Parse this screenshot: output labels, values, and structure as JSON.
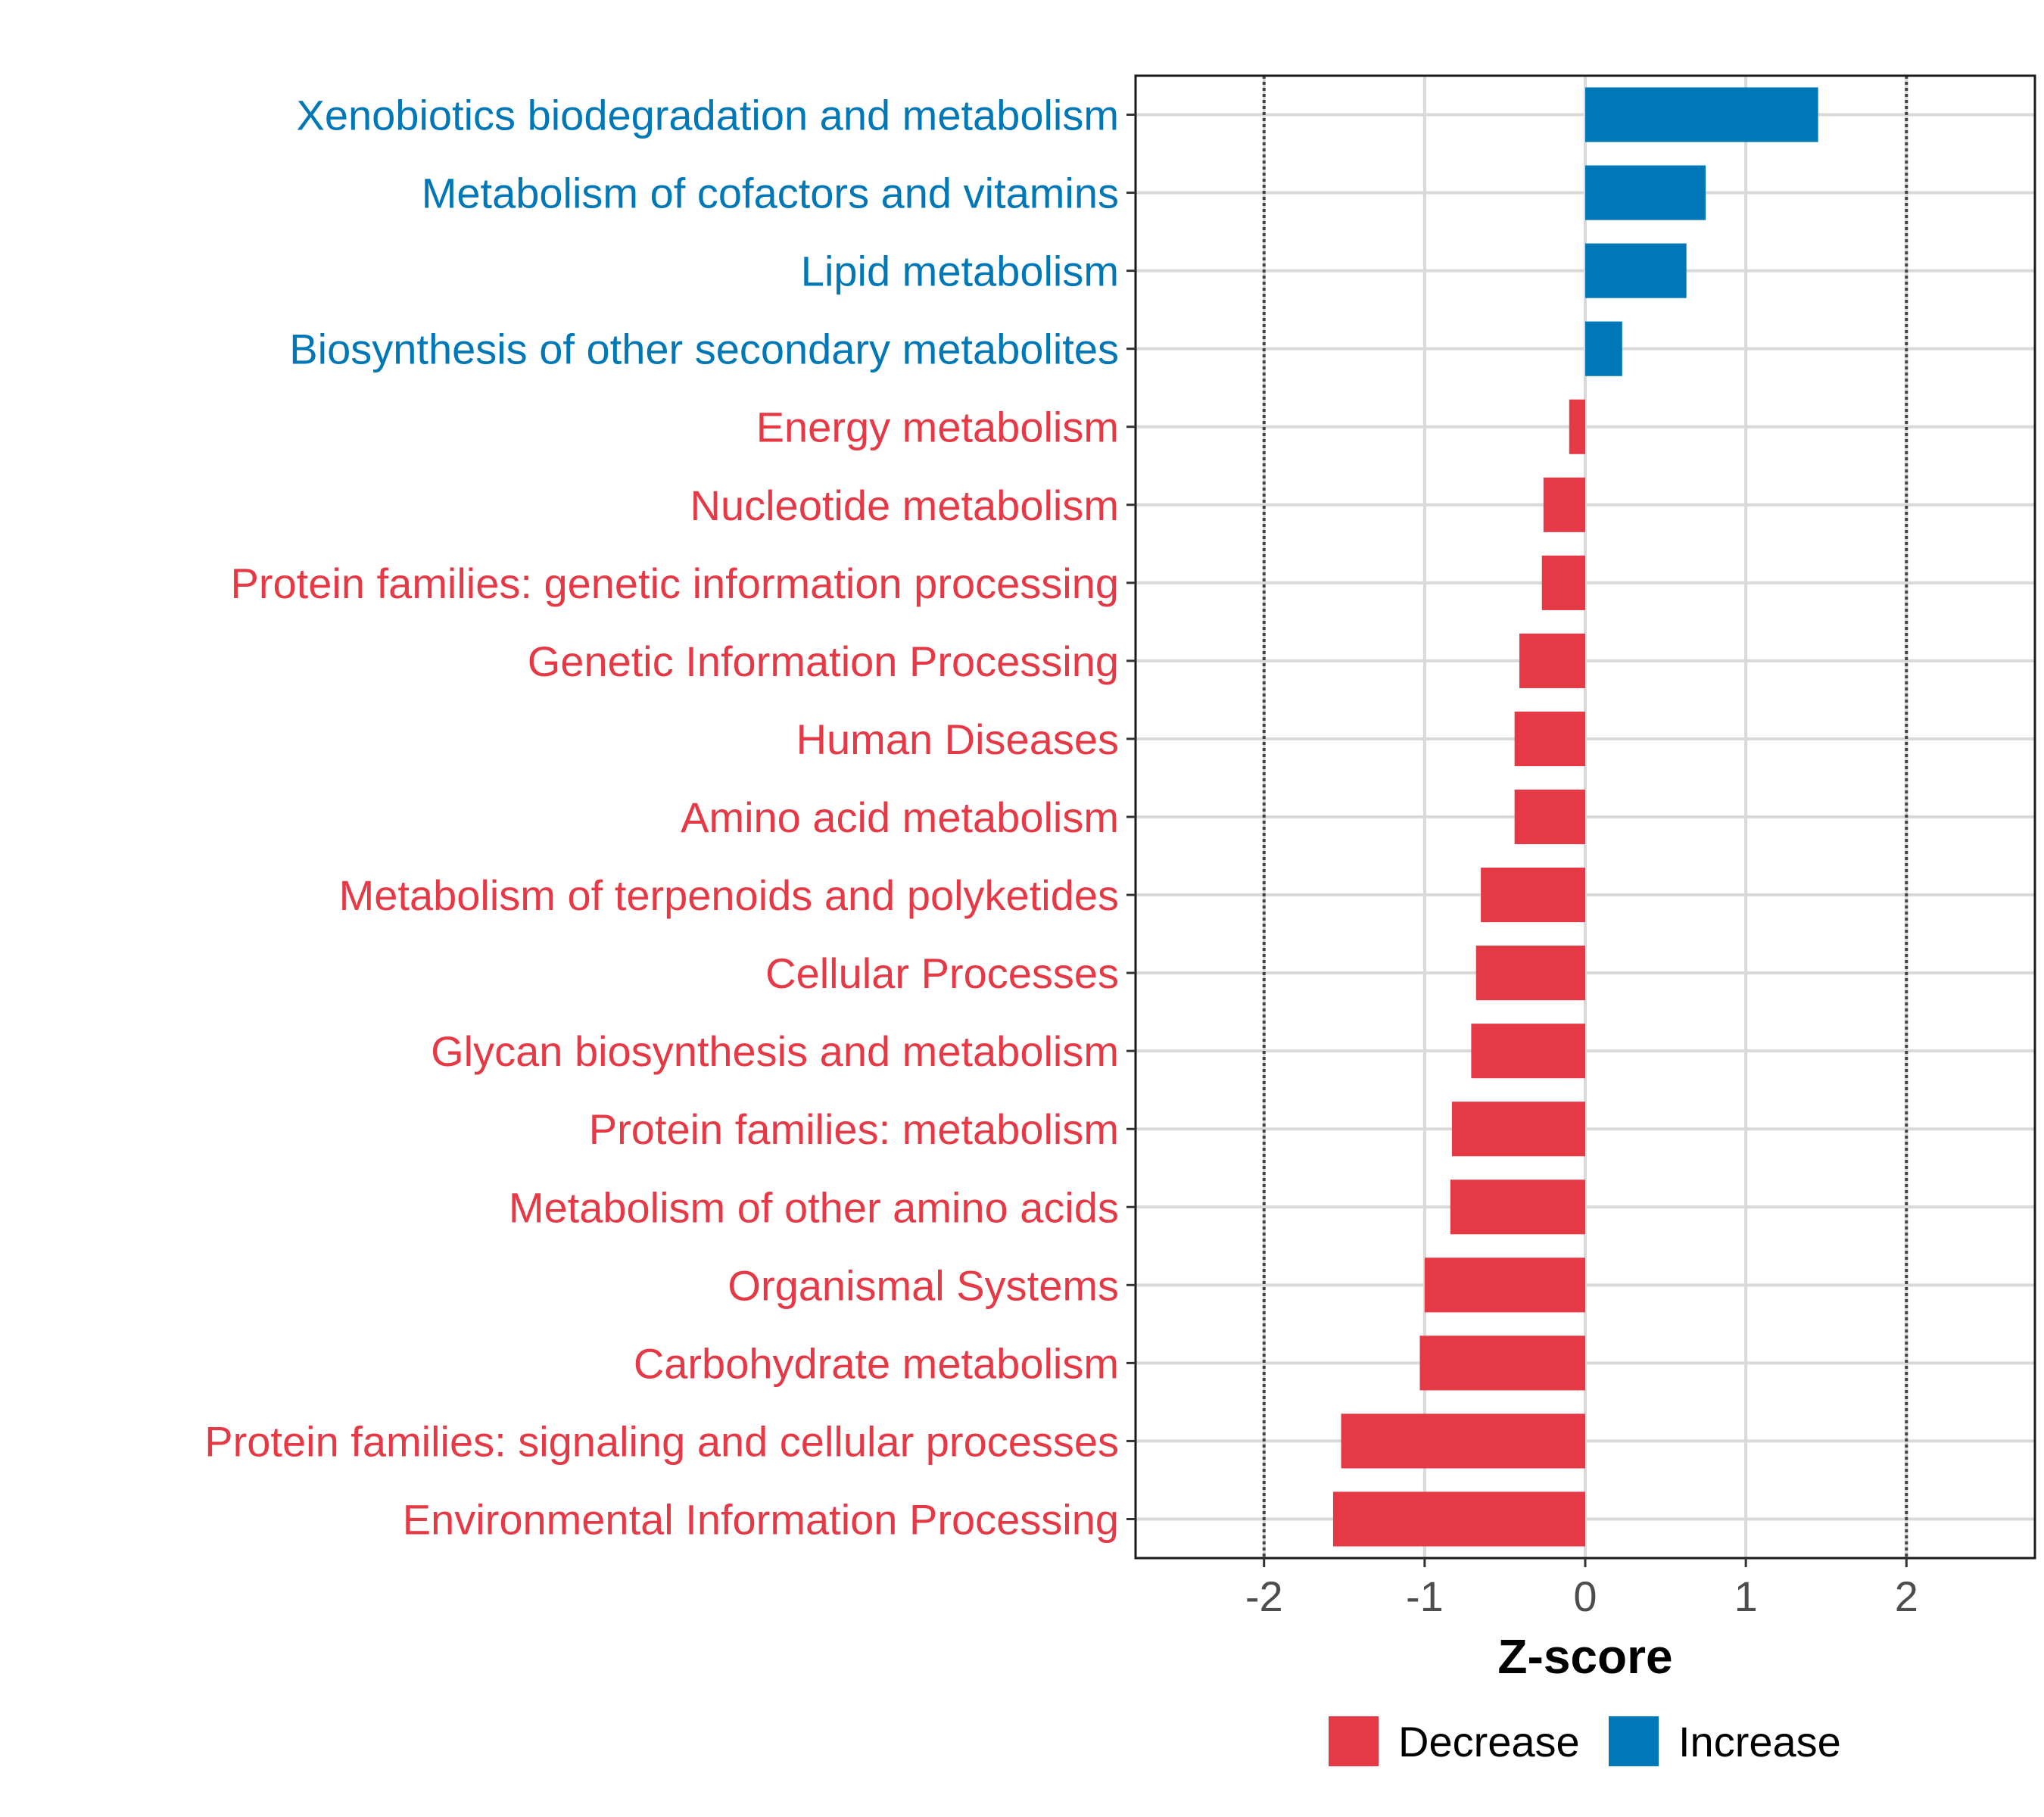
{
  "chart_data": {
    "type": "bar",
    "orientation": "horizontal",
    "title": "",
    "xlabel": "Z-score",
    "ylabel": "",
    "xlim": [
      -2.8,
      2.8
    ],
    "xticks": [
      "-2",
      "-1",
      "0",
      "1",
      "2"
    ],
    "reference_lines": [
      -2,
      2
    ],
    "grid": true,
    "categories": [
      "Xenobiotics biodegradation and metabolism",
      "Metabolism of cofactors and vitamins",
      "Lipid metabolism",
      "Biosynthesis of other secondary metabolites",
      "Energy metabolism",
      "Nucleotide metabolism",
      "Protein families: genetic information processing",
      "Genetic Information Processing",
      "Human Diseases",
      "Amino acid metabolism",
      "Metabolism of terpenoids and polyketides",
      "Cellular Processes",
      "Glycan biosynthesis and metabolism",
      "Protein families: metabolism",
      "Metabolism of other amino acids",
      "Organismal Systems",
      "Carbohydrate metabolism",
      "Protein families: signaling and cellular processes",
      "Environmental Information Processing"
    ],
    "values": [
      1.45,
      0.75,
      0.63,
      0.23,
      -0.1,
      -0.26,
      -0.27,
      -0.41,
      -0.44,
      -0.44,
      -0.65,
      -0.68,
      -0.71,
      -0.83,
      -0.84,
      -1.0,
      -1.03,
      -1.52,
      -1.57
    ],
    "groups": [
      "Increase",
      "Increase",
      "Increase",
      "Increase",
      "Decrease",
      "Decrease",
      "Decrease",
      "Decrease",
      "Decrease",
      "Decrease",
      "Decrease",
      "Decrease",
      "Decrease",
      "Decrease",
      "Decrease",
      "Decrease",
      "Decrease",
      "Decrease",
      "Decrease"
    ],
    "legend": {
      "position": "bottom",
      "entries": [
        {
          "label": "Decrease",
          "color": "#E63946"
        },
        {
          "label": "Increase",
          "color": "#0077B6"
        }
      ]
    }
  }
}
